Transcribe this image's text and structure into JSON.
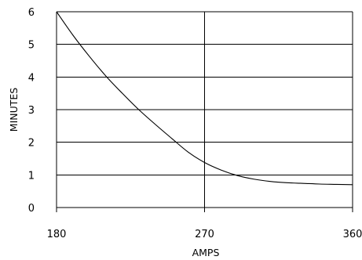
{
  "chart_data": {
    "type": "line",
    "xlabel": "AMPS",
    "ylabel": "MINUTES",
    "xlim": [
      180,
      360
    ],
    "ylim": [
      0,
      6
    ],
    "x_ticks": [
      "180",
      "270",
      "360"
    ],
    "y_ticks": [
      "0",
      "1",
      "2",
      "3",
      "4",
      "5",
      "6"
    ],
    "grid": {
      "horizontal": true,
      "vertical_at": [
        270
      ]
    },
    "series": [
      {
        "x": [
          180,
          190,
          200,
          210,
          220,
          230,
          240,
          250,
          260,
          270,
          280,
          290,
          300,
          310,
          320,
          330,
          340,
          350,
          360
        ],
        "y": [
          6.0,
          5.28,
          4.63,
          4.03,
          3.5,
          3.0,
          2.55,
          2.12,
          1.7,
          1.38,
          1.15,
          0.98,
          0.87,
          0.8,
          0.76,
          0.74,
          0.72,
          0.71,
          0.7
        ]
      }
    ],
    "colors": {
      "line": "#000000",
      "grid": "#000000",
      "background": "#ffffff"
    }
  }
}
